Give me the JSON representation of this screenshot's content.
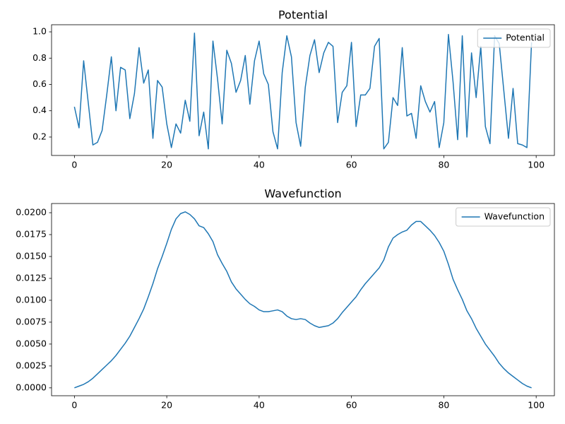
{
  "chart_data": [
    {
      "type": "line",
      "title": "Potential",
      "x": [
        0,
        1,
        2,
        3,
        4,
        5,
        6,
        7,
        8,
        9,
        10,
        11,
        12,
        13,
        14,
        15,
        16,
        17,
        18,
        19,
        20,
        21,
        22,
        23,
        24,
        25,
        26,
        27,
        28,
        29,
        30,
        31,
        32,
        33,
        34,
        35,
        36,
        37,
        38,
        39,
        40,
        41,
        42,
        43,
        44,
        45,
        46,
        47,
        48,
        49,
        50,
        51,
        52,
        53,
        54,
        55,
        56,
        57,
        58,
        59,
        60,
        61,
        62,
        63,
        64,
        65,
        66,
        67,
        68,
        69,
        70,
        71,
        72,
        73,
        74,
        75,
        76,
        77,
        78,
        79,
        80,
        81,
        82,
        83,
        84,
        85,
        86,
        87,
        88,
        89,
        90,
        91,
        92,
        93,
        94,
        95,
        96,
        97,
        98,
        99
      ],
      "series": [
        {
          "name": "Potential",
          "color": "#1f77b4",
          "values": [
            0.43,
            0.27,
            0.78,
            0.46,
            0.14,
            0.16,
            0.25,
            0.52,
            0.81,
            0.4,
            0.73,
            0.71,
            0.34,
            0.53,
            0.88,
            0.61,
            0.71,
            0.19,
            0.63,
            0.58,
            0.3,
            0.12,
            0.3,
            0.23,
            0.48,
            0.32,
            0.99,
            0.21,
            0.39,
            0.11,
            0.93,
            0.64,
            0.3,
            0.86,
            0.76,
            0.54,
            0.63,
            0.82,
            0.45,
            0.78,
            0.93,
            0.68,
            0.6,
            0.24,
            0.11,
            0.69,
            0.97,
            0.81,
            0.31,
            0.13,
            0.58,
            0.82,
            0.94,
            0.69,
            0.84,
            0.92,
            0.89,
            0.31,
            0.54,
            0.59,
            0.92,
            0.28,
            0.52,
            0.52,
            0.57,
            0.89,
            0.95,
            0.11,
            0.16,
            0.5,
            0.44,
            0.88,
            0.36,
            0.38,
            0.19,
            0.59,
            0.47,
            0.39,
            0.47,
            0.12,
            0.31,
            0.98,
            0.62,
            0.18,
            0.97,
            0.2,
            0.84,
            0.5,
            0.89,
            0.28,
            0.15,
            0.97,
            0.91,
            0.55,
            0.19,
            0.57,
            0.15,
            0.14,
            0.12,
            0.92
          ]
        }
      ],
      "xlim": [
        -4.95,
        103.95
      ],
      "ylim": [
        0.06,
        1.054
      ],
      "xticks": [
        0,
        20,
        40,
        60,
        80,
        100
      ],
      "yticks": [
        0.2,
        0.4,
        0.6,
        0.8,
        {
          "value": 1,
          "label": "1.0"
        }
      ],
      "legend": "upper right"
    },
    {
      "type": "line",
      "title": "Wavefunction",
      "x": [
        0,
        1,
        2,
        3,
        4,
        5,
        6,
        7,
        8,
        9,
        10,
        11,
        12,
        13,
        14,
        15,
        16,
        17,
        18,
        19,
        20,
        21,
        22,
        23,
        24,
        25,
        26,
        27,
        28,
        29,
        30,
        31,
        32,
        33,
        34,
        35,
        36,
        37,
        38,
        39,
        40,
        41,
        42,
        43,
        44,
        45,
        46,
        47,
        48,
        49,
        50,
        51,
        52,
        53,
        54,
        55,
        56,
        57,
        58,
        59,
        60,
        61,
        62,
        63,
        64,
        65,
        66,
        67,
        68,
        69,
        70,
        71,
        72,
        73,
        74,
        75,
        76,
        77,
        78,
        79,
        80,
        81,
        82,
        83,
        84,
        85,
        86,
        87,
        88,
        89,
        90,
        91,
        92,
        93,
        94,
        95,
        96,
        97,
        98,
        99
      ],
      "series": [
        {
          "name": "Wavefunction",
          "color": "#1f77b4",
          "values": [
            0.0,
            0.0002,
            0.0004,
            0.0007,
            0.0011,
            0.0016,
            0.0021,
            0.0026,
            0.0031,
            0.0037,
            0.0044,
            0.0051,
            0.0059,
            0.0069,
            0.0079,
            0.009,
            0.0104,
            0.0119,
            0.0136,
            0.015,
            0.0165,
            0.0181,
            0.0193,
            0.0199,
            0.0201,
            0.0198,
            0.0193,
            0.0185,
            0.0183,
            0.0176,
            0.0167,
            0.0152,
            0.0142,
            0.0133,
            0.0121,
            0.0113,
            0.0107,
            0.0101,
            0.0096,
            0.0093,
            0.0089,
            0.0087,
            0.0087,
            0.0088,
            0.0089,
            0.0087,
            0.0082,
            0.0079,
            0.0078,
            0.0079,
            0.0078,
            0.0074,
            0.0071,
            0.0069,
            0.007,
            0.0071,
            0.0074,
            0.0079,
            0.0086,
            0.0092,
            0.0098,
            0.0104,
            0.0112,
            0.0119,
            0.0125,
            0.0131,
            0.0137,
            0.0146,
            0.0161,
            0.0171,
            0.0175,
            0.0178,
            0.018,
            0.0186,
            0.019,
            0.019,
            0.0185,
            0.018,
            0.0174,
            0.0166,
            0.0156,
            0.0141,
            0.0124,
            0.0112,
            0.0101,
            0.0088,
            0.0079,
            0.0068,
            0.0059,
            0.005,
            0.0043,
            0.0036,
            0.0028,
            0.0022,
            0.0017,
            0.0013,
            0.0009,
            0.0005,
            0.0002,
            0.0
          ]
        }
      ],
      "xlim": [
        -4.95,
        103.95
      ],
      "ylim": [
        -0.0009,
        0.02105
      ],
      "xticks": [
        0,
        20,
        40,
        60,
        80,
        100
      ],
      "yticks": [
        {
          "value": 0,
          "label": "0.0000"
        },
        {
          "value": 0.0025,
          "label": "0.0025"
        },
        {
          "value": 0.005,
          "label": "0.0050"
        },
        {
          "value": 0.0075,
          "label": "0.0075"
        },
        {
          "value": 0.01,
          "label": "0.0100"
        },
        {
          "value": 0.0125,
          "label": "0.0125"
        },
        {
          "value": 0.015,
          "label": "0.0150"
        },
        {
          "value": 0.0175,
          "label": "0.0175"
        },
        {
          "value": 0.02,
          "label": "0.0200"
        }
      ],
      "legend": "upper right"
    }
  ]
}
